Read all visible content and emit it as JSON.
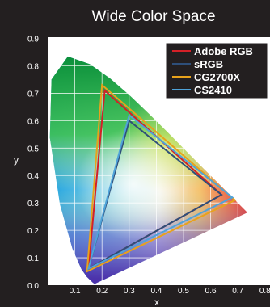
{
  "chart_data": {
    "type": "chromaticity_diagram",
    "title": "Wide Color Space",
    "xlabel": "x",
    "ylabel": "y",
    "xlim": [
      0.0,
      0.8
    ],
    "ylim": [
      0.0,
      0.9
    ],
    "grid": true,
    "x_ticks": [
      "0.1",
      "0.2",
      "0.3",
      "0.4",
      "0.5",
      "0.6",
      "0.7",
      "0.8"
    ],
    "y_ticks": [
      "0.0",
      "0.1",
      "0.2",
      "0.3",
      "0.4",
      "0.5",
      "0.6",
      "0.7",
      "0.8",
      "0.9"
    ],
    "legend_position": "top-right",
    "spectral_locus": [
      [
        0.174,
        0.005
      ],
      [
        0.172,
        0.005
      ],
      [
        0.166,
        0.009
      ],
      [
        0.144,
        0.03
      ],
      [
        0.124,
        0.058
      ],
      [
        0.091,
        0.133
      ],
      [
        0.045,
        0.295
      ],
      [
        0.008,
        0.538
      ],
      [
        0.014,
        0.75
      ],
      [
        0.074,
        0.834
      ],
      [
        0.155,
        0.806
      ],
      [
        0.23,
        0.754
      ],
      [
        0.302,
        0.692
      ],
      [
        0.373,
        0.625
      ],
      [
        0.444,
        0.555
      ],
      [
        0.512,
        0.487
      ],
      [
        0.575,
        0.424
      ],
      [
        0.627,
        0.373
      ],
      [
        0.666,
        0.334
      ],
      [
        0.692,
        0.308
      ],
      [
        0.735,
        0.265
      ]
    ],
    "series": [
      {
        "name": "Adobe RGB",
        "color": "#d42027",
        "points": [
          [
            0.64,
            0.33
          ],
          [
            0.21,
            0.71
          ],
          [
            0.15,
            0.06
          ]
        ]
      },
      {
        "name": "sRGB",
        "color": "#2e4f7a",
        "points": [
          [
            0.64,
            0.33
          ],
          [
            0.3,
            0.6
          ],
          [
            0.15,
            0.06
          ]
        ]
      },
      {
        "name": "CG2700X",
        "color": "#e8a21b",
        "points": [
          [
            0.69,
            0.31
          ],
          [
            0.2,
            0.73
          ],
          [
            0.145,
            0.05
          ]
        ]
      },
      {
        "name": "CS2410",
        "color": "#4fa3d9",
        "points": [
          [
            0.68,
            0.32
          ],
          [
            0.3,
            0.62
          ],
          [
            0.15,
            0.06
          ]
        ]
      }
    ]
  }
}
